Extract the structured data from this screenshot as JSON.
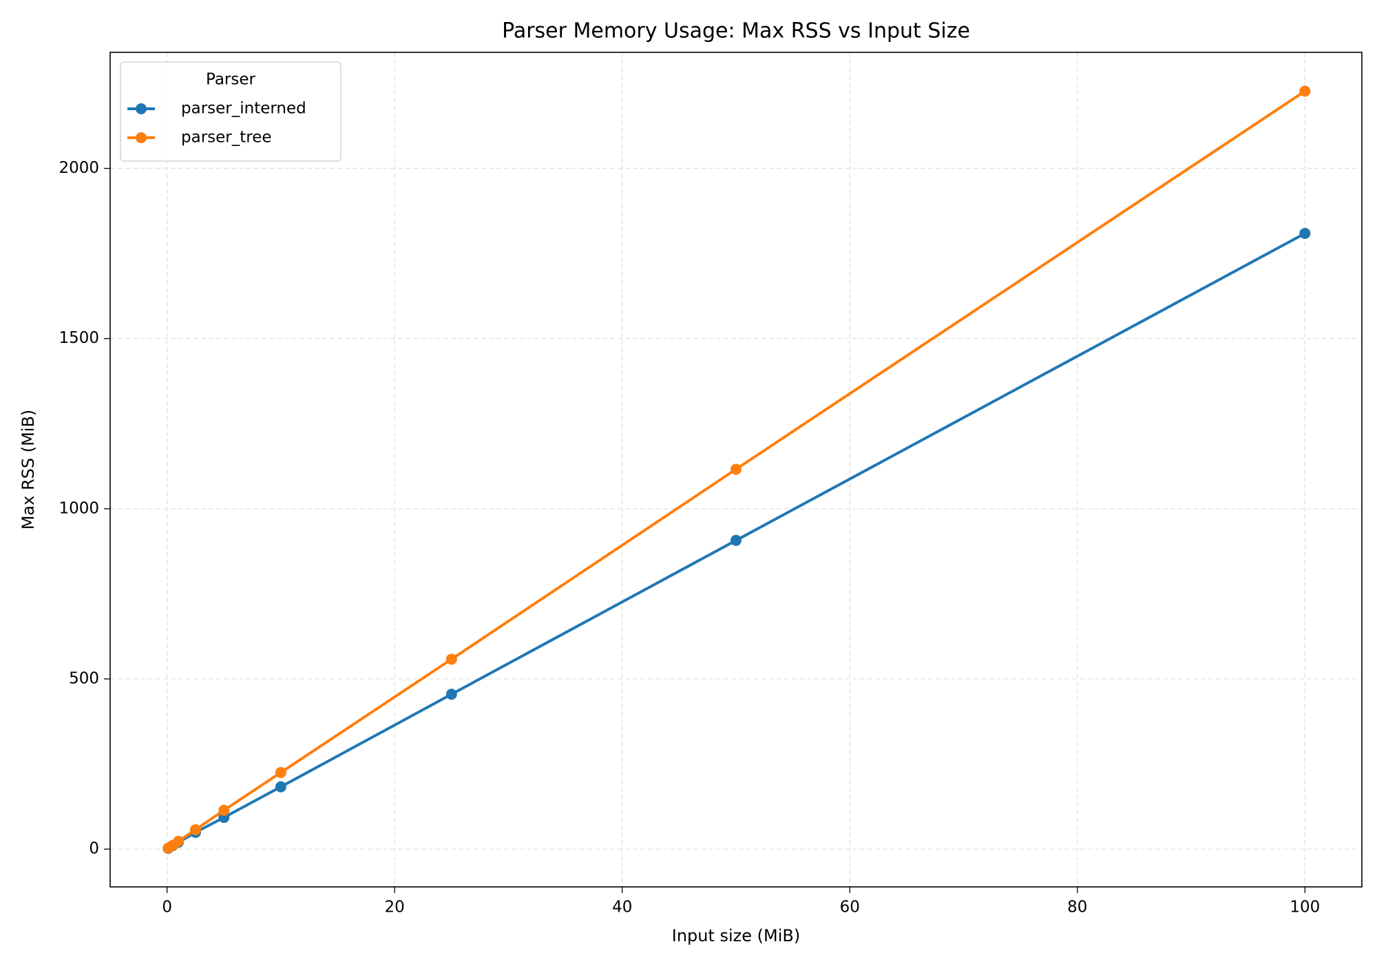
{
  "chart_data": {
    "type": "line",
    "title": "Parser Memory Usage: Max RSS vs Input Size",
    "xlabel": "Input size (MiB)",
    "ylabel": "Max RSS (MiB)",
    "x": [
      0.1,
      0.5,
      1,
      2.5,
      5,
      10,
      25,
      50,
      100
    ],
    "series": [
      {
        "name": "parser_interned",
        "color": "#1f77b4",
        "values": [
          2,
          10,
          20,
          49,
          93,
          183,
          455,
          907,
          1809
        ]
      },
      {
        "name": "parser_tree",
        "color": "#ff7f0e",
        "values": [
          3,
          11,
          23,
          57,
          114,
          225,
          558,
          1116,
          2227
        ]
      }
    ],
    "xlim": [
      -5,
      105
    ],
    "xticks": [
      0,
      20,
      40,
      60,
      80,
      100
    ],
    "ylim": [
      -111,
      2341
    ],
    "yticks": [
      0,
      500,
      1000,
      1500,
      2000
    ],
    "grid": true,
    "legend": {
      "title": "Parser",
      "position": "upper left"
    }
  }
}
